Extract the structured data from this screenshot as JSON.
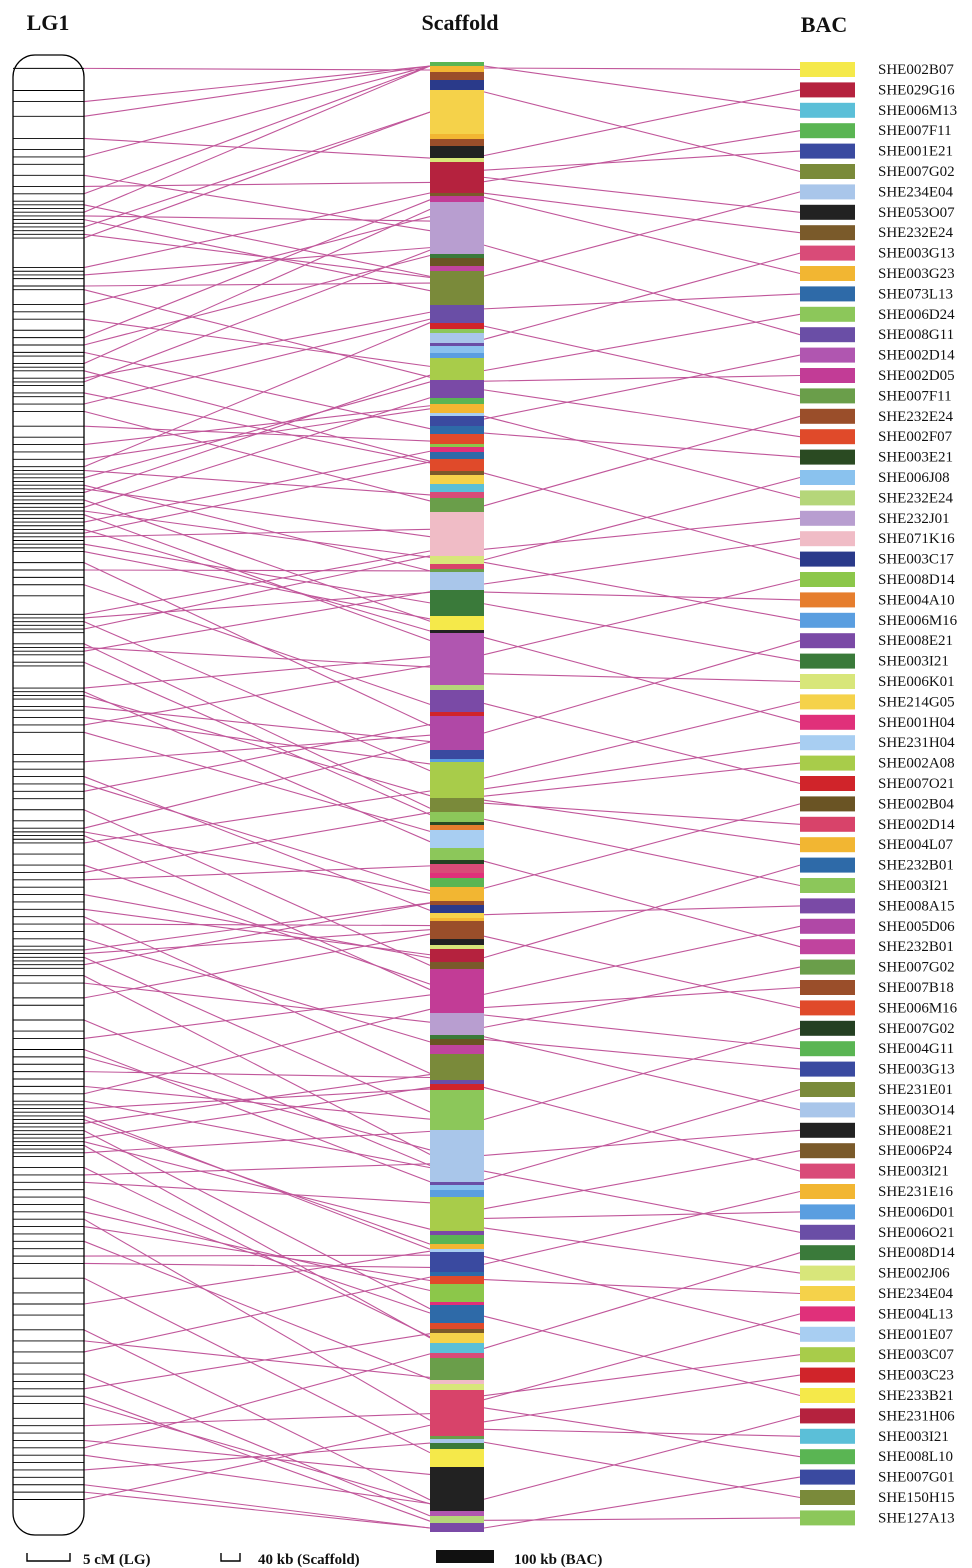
{
  "headers": {
    "lg": "LG1",
    "scaffold": "Scaffold",
    "bac": "BAC"
  },
  "legend": {
    "lg_scale": "5 cM (LG)",
    "scaffold_scale": "40 kb (Scaffold)",
    "bac_scale": "100 kb (BAC)"
  },
  "colors": {
    "connector": "#c0569a",
    "outline": "#000000"
  },
  "bacs": [
    {
      "name": "SHE002B07",
      "color": "#f5e94a"
    },
    {
      "name": "SHE029G16",
      "color": "#b5223e"
    },
    {
      "name": "SHE006M13",
      "color": "#5bbfd8"
    },
    {
      "name": "SHE007F11",
      "color": "#5ab553"
    },
    {
      "name": "SHE001E21",
      "color": "#3a4aa0"
    },
    {
      "name": "SHE007G02",
      "color": "#7a8a3a"
    },
    {
      "name": "SHE234E04",
      "color": "#a9c6ea"
    },
    {
      "name": "SHE053O07",
      "color": "#222222"
    },
    {
      "name": "SHE232E24",
      "color": "#7a5a2a"
    },
    {
      "name": "SHE003G13",
      "color": "#d94b78"
    },
    {
      "name": "SHE003G23",
      "color": "#f2b632"
    },
    {
      "name": "SHE073L13",
      "color": "#2e6aa8"
    },
    {
      "name": "SHE006D24",
      "color": "#8cc75a"
    },
    {
      "name": "SHE008G11",
      "color": "#6a4ea6"
    },
    {
      "name": "SHE002D14",
      "color": "#b056b0"
    },
    {
      "name": "SHE002D05",
      "color": "#c23c96"
    },
    {
      "name": "SHE007F11",
      "color": "#6a9e4a"
    },
    {
      "name": "SHE232E24",
      "color": "#9a4e2a"
    },
    {
      "name": "SHE002F07",
      "color": "#e04a2a"
    },
    {
      "name": "SHE003E21",
      "color": "#2a4a22"
    },
    {
      "name": "SHE006J08",
      "color": "#8ac2ee"
    },
    {
      "name": "SHE232E24",
      "color": "#b5d67a"
    },
    {
      "name": "SHE232J01",
      "color": "#b89ed0"
    },
    {
      "name": "SHE071K16",
      "color": "#f0bcc6"
    },
    {
      "name": "SHE003C17",
      "color": "#2a3a8a"
    },
    {
      "name": "SHE008D14",
      "color": "#8cc74a"
    },
    {
      "name": "SHE004A10",
      "color": "#e67e2e"
    },
    {
      "name": "SHE006M16",
      "color": "#5a9ee0"
    },
    {
      "name": "SHE008E21",
      "color": "#7a4aa6"
    },
    {
      "name": "SHE003I21",
      "color": "#3a7a3a"
    },
    {
      "name": "SHE006K01",
      "color": "#d8e67a"
    },
    {
      "name": "SHE214G05",
      "color": "#f5d24a"
    },
    {
      "name": "SHE001H04",
      "color": "#e0307a"
    },
    {
      "name": "SHE231H04",
      "color": "#a8cef2"
    },
    {
      "name": "SHE002A08",
      "color": "#a8cc4a"
    },
    {
      "name": "SHE007O21",
      "color": "#d0242a"
    },
    {
      "name": "SHE002B04",
      "color": "#6a5424"
    },
    {
      "name": "SHE002D14",
      "color": "#d8436a"
    },
    {
      "name": "SHE004L07",
      "color": "#f2b632"
    },
    {
      "name": "SHE232B01",
      "color": "#2e6aa8"
    },
    {
      "name": "SHE003I21",
      "color": "#8cc75a"
    },
    {
      "name": "SHE008A15",
      "color": "#7a4aa6"
    },
    {
      "name": "SHE005D06",
      "color": "#b048a6"
    },
    {
      "name": "SHE232B01",
      "color": "#c0449e"
    },
    {
      "name": "SHE007G02",
      "color": "#6a9e4a"
    },
    {
      "name": "SHE007B18",
      "color": "#9a4e2a"
    },
    {
      "name": "SHE006M16",
      "color": "#e04a2a"
    },
    {
      "name": "SHE007G02",
      "color": "#244022"
    },
    {
      "name": "SHE004G11",
      "color": "#5ab553"
    },
    {
      "name": "SHE003G13",
      "color": "#3a4aa0"
    },
    {
      "name": "SHE231E01",
      "color": "#7a8a3a"
    },
    {
      "name": "SHE003O14",
      "color": "#a9c6ea"
    },
    {
      "name": "SHE008E21",
      "color": "#222222"
    },
    {
      "name": "SHE006P24",
      "color": "#7a5a2a"
    },
    {
      "name": "SHE003I21",
      "color": "#d94b78"
    },
    {
      "name": "SHE231E16",
      "color": "#f2b632"
    },
    {
      "name": "SHE006D01",
      "color": "#5a9ee0"
    },
    {
      "name": "SHE006O21",
      "color": "#6a4ea6"
    },
    {
      "name": "SHE008D14",
      "color": "#3a7a3a"
    },
    {
      "name": "SHE002J06",
      "color": "#d8e67a"
    },
    {
      "name": "SHE234E04",
      "color": "#f5d24a"
    },
    {
      "name": "SHE004L13",
      "color": "#e0307a"
    },
    {
      "name": "SHE001E07",
      "color": "#a8cef2"
    },
    {
      "name": "SHE003C07",
      "color": "#a8cc4a"
    },
    {
      "name": "SHE003C23",
      "color": "#d0242a"
    },
    {
      "name": "SHE233B21",
      "color": "#f5e94a"
    },
    {
      "name": "SHE231H06",
      "color": "#b5223e"
    },
    {
      "name": "SHE003I21",
      "color": "#5bbfd8"
    },
    {
      "name": "SHE008L10",
      "color": "#5ab553"
    },
    {
      "name": "SHE007G01",
      "color": "#3a4aa0"
    },
    {
      "name": "SHE150H15",
      "color": "#7a8a3a"
    },
    {
      "name": "SHE127A13",
      "color": "#8cc75a"
    }
  ],
  "lg_markers_cm": [
    2,
    8,
    11,
    15,
    21,
    24,
    26,
    28,
    31,
    34,
    36,
    38,
    39,
    40,
    41,
    42,
    43,
    44,
    45,
    46,
    47,
    48,
    56,
    57,
    58,
    59,
    61,
    62,
    66,
    68,
    70,
    73,
    75,
    77,
    79,
    80,
    82,
    83,
    84,
    86,
    87,
    88,
    90,
    91,
    93,
    95,
    99,
    102,
    104,
    106,
    108,
    110,
    111,
    112,
    113,
    114,
    115,
    116,
    117,
    118,
    119,
    120,
    121,
    122,
    123,
    124,
    125,
    126,
    127,
    128,
    129,
    130,
    131,
    132,
    133,
    136,
    138,
    140,
    142,
    145,
    150,
    151,
    152,
    153,
    154,
    155,
    158,
    159,
    160,
    161,
    163,
    164,
    170,
    171,
    172,
    173,
    175,
    176,
    178,
    180,
    182,
    188,
    190,
    192,
    194,
    196,
    198,
    200,
    203,
    206,
    208,
    209,
    210,
    211,
    212,
    215,
    218,
    220,
    222,
    224,
    226,
    228,
    230,
    232,
    234,
    236,
    238,
    240,
    241,
    242,
    243,
    244,
    245,
    246,
    248,
    250,
    254,
    256,
    260,
    263,
    265,
    268,
    270,
    272,
    274,
    276,
    278,
    280,
    282,
    283,
    284,
    285,
    286,
    287,
    288,
    289,
    290,
    291,
    292,
    293,
    294,
    295,
    296,
    297,
    300,
    302,
    304,
    306,
    308,
    310,
    312,
    314,
    316,
    318,
    320,
    322,
    324,
    326,
    330,
    334,
    337,
    340,
    344,
    347,
    350,
    353,
    356,
    358,
    360,
    362,
    364,
    368,
    370,
    372,
    374,
    376,
    378,
    380,
    382,
    384,
    386,
    388,
    390
  ]
}
